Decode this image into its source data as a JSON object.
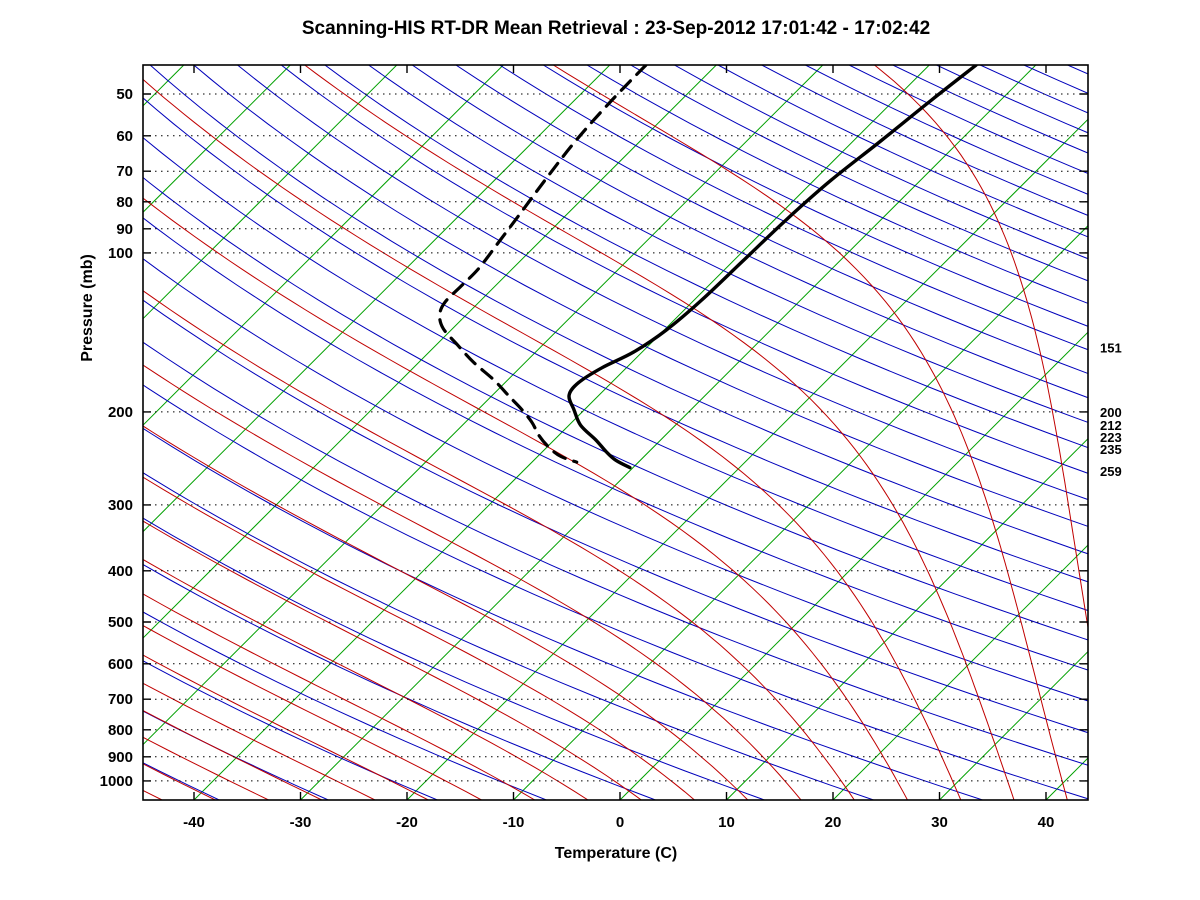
{
  "title": "Scanning-HIS RT-DR Mean Retrieval : 23-Sep-2012 17:01:42 - 17:02:42",
  "chart_data": {
    "type": "line",
    "subtype": "skew-t-log-p-sounding",
    "title": "Scanning-HIS RT-DR Mean Retrieval : 23-Sep-2012 17:01:42 - 17:02:42",
    "xlabel": "Temperature (C)",
    "ylabel": "Pressure (mb)",
    "x_tick_labels": [
      -40,
      -30,
      -20,
      -10,
      0,
      10,
      20,
      30,
      40
    ],
    "y_tick_labels": [
      50,
      60,
      70,
      80,
      90,
      100,
      200,
      300,
      400,
      500,
      600,
      700,
      800,
      900,
      1000
    ],
    "x_range_c": [
      -44.8,
      43.9
    ],
    "pressure_range_mb": [
      44,
      1087
    ],
    "skew_c_per_decade": 49.6,
    "grid": "horizontal dotted isobars at labeled pressure ticks only",
    "legend_position": "none",
    "colors": {
      "isotherm": "#00a000",
      "dry_adiabat": "#0000bb",
      "moist_adiabat": "#c00000",
      "profile": "#000000",
      "grid": "#000000"
    },
    "isotherms_c": {
      "min": -120,
      "max": 40,
      "step": 10
    },
    "dry_adiabats_theta_k": {
      "min": 220,
      "max": 600,
      "step": 10
    },
    "moist_adiabats_start_c": {
      "min": -48,
      "max": 92,
      "step": 5
    },
    "right_pressure_labels_mb": [
      151,
      200,
      212,
      223,
      235,
      259
    ],
    "series": [
      {
        "name": "temperature",
        "style": "solid",
        "color": "#000000",
        "points_p_t": [
          [
            44.1,
            -35.6
          ],
          [
            51.3,
            -36.5
          ],
          [
            61.1,
            -37.4
          ],
          [
            72.8,
            -38.4
          ],
          [
            86.7,
            -38.9
          ],
          [
            104,
            -39.1
          ],
          [
            123,
            -39.3
          ],
          [
            140,
            -39.8
          ],
          [
            154,
            -40.8
          ],
          [
            165,
            -42.3
          ],
          [
            176,
            -43.1
          ],
          [
            186,
            -42.8
          ],
          [
            198,
            -41.0
          ],
          [
            212,
            -38.9
          ],
          [
            226,
            -36.1
          ],
          [
            238,
            -34.0
          ],
          [
            247,
            -32.3
          ],
          [
            255,
            -30.3
          ]
        ]
      },
      {
        "name": "dew_point",
        "style": "dashed",
        "color": "#000000",
        "points_p_t": [
          [
            44.1,
            -66.6
          ],
          [
            51.3,
            -66.5
          ],
          [
            61.1,
            -66.1
          ],
          [
            72.4,
            -65.3
          ],
          [
            83.6,
            -64.5
          ],
          [
            95.3,
            -63.8
          ],
          [
            107,
            -63.2
          ],
          [
            116,
            -63.2
          ],
          [
            124,
            -63.2
          ],
          [
            131,
            -62.5
          ],
          [
            139,
            -60.9
          ],
          [
            149,
            -58.1
          ],
          [
            161,
            -54.9
          ],
          [
            174,
            -51.3
          ],
          [
            187,
            -48.3
          ],
          [
            197,
            -46.1
          ],
          [
            209,
            -43.8
          ],
          [
            222,
            -41.8
          ],
          [
            234,
            -39.7
          ],
          [
            243,
            -37.8
          ],
          [
            249,
            -35.8
          ]
        ]
      }
    ]
  }
}
